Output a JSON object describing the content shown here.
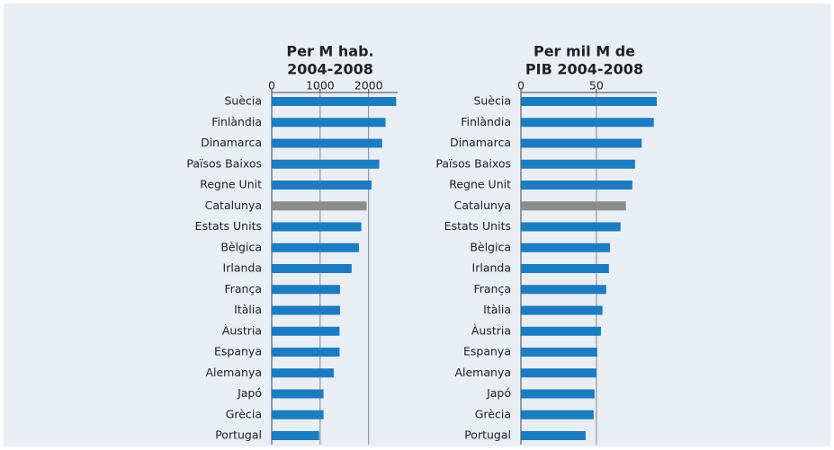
{
  "chart_data": [
    {
      "type": "barh",
      "title": [
        "Per M hab.",
        "2004-2008"
      ],
      "categories": [
        "Suècia",
        "Finlàndia",
        "Dinamarca",
        "Països Baixos",
        "Regne Unit",
        "Catalunya",
        "Estats Units",
        "Bèlgica",
        "Irlanda",
        "França",
        "Itàlia",
        "Àustria",
        "Espanya",
        "Alemanya",
        "Japó",
        "Grècia",
        "Portugal"
      ],
      "values": [
        2570,
        2350,
        2280,
        2220,
        2060,
        1960,
        1850,
        1800,
        1650,
        1410,
        1410,
        1400,
        1400,
        1280,
        1070,
        1070,
        980
      ],
      "colors": [
        "#1b7cc2",
        "#1b7cc2",
        "#1b7cc2",
        "#1b7cc2",
        "#1b7cc2",
        "#8c8c8c",
        "#1b7cc2",
        "#1b7cc2",
        "#1b7cc2",
        "#1b7cc2",
        "#1b7cc2",
        "#1b7cc2",
        "#1b7cc2",
        "#1b7cc2",
        "#1b7cc2",
        "#1b7cc2",
        "#1b7cc2"
      ],
      "xlim": [
        0,
        2600
      ],
      "xticks": [
        0,
        1000,
        2000
      ],
      "grid": true
    },
    {
      "type": "barh",
      "title": [
        "Per mil M de",
        "PIB 2004-2008"
      ],
      "categories": [
        "Suècia",
        "Finlàndia",
        "Dinamarca",
        "Països Baixos",
        "Regne Unit",
        "Catalunya",
        "Estats Units",
        "Bèlgica",
        "Irlanda",
        "França",
        "Itàlia",
        "Àustria",
        "Espanya",
        "Alemanya",
        "Japó",
        "Grècia",
        "Portugal"
      ],
      "values": [
        90,
        88,
        80,
        75.6,
        73.8,
        69.6,
        66,
        59,
        58.3,
        56.5,
        54,
        53,
        50.6,
        50,
        48.8,
        48.2,
        42.9
      ],
      "colors": [
        "#1b7cc2",
        "#1b7cc2",
        "#1b7cc2",
        "#1b7cc2",
        "#1b7cc2",
        "#8c8c8c",
        "#1b7cc2",
        "#1b7cc2",
        "#1b7cc2",
        "#1b7cc2",
        "#1b7cc2",
        "#1b7cc2",
        "#1b7cc2",
        "#1b7cc2",
        "#1b7cc2",
        "#1b7cc2",
        "#1b7cc2"
      ],
      "xlim": [
        0,
        90
      ],
      "xticks": [
        0,
        50
      ],
      "grid": true
    }
  ]
}
